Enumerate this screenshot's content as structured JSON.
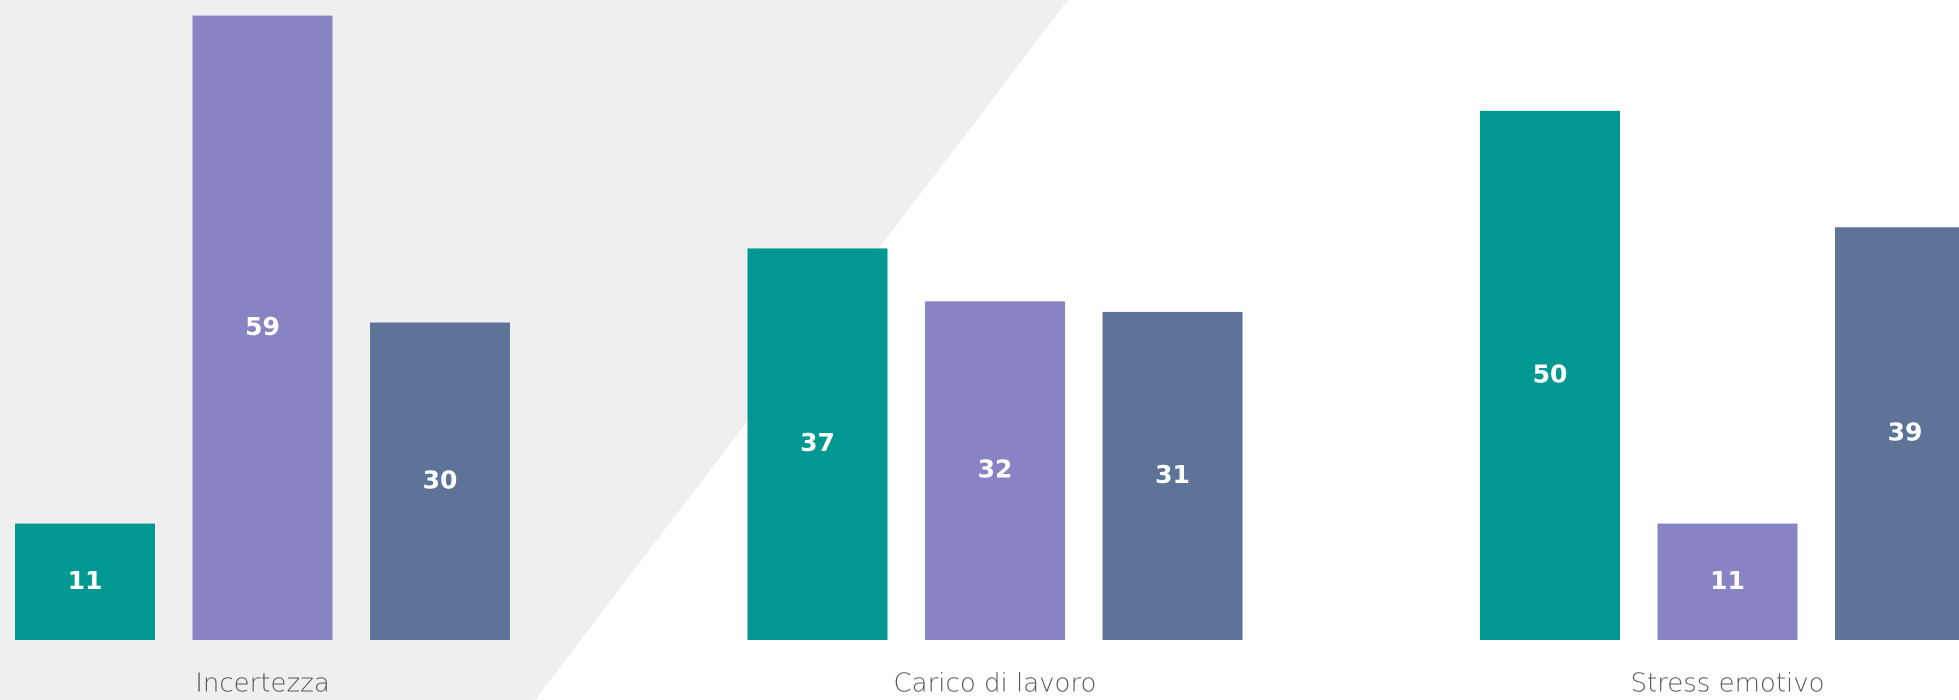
{
  "chart_data": {
    "type": "bar",
    "categories": [
      "Incertezza",
      "Carico di lavoro",
      "Stress emotivo"
    ],
    "series": [
      {
        "color": "#009890",
        "values": [
          11,
          37,
          50
        ]
      },
      {
        "color": "#8884c4",
        "values": [
          59,
          32,
          11
        ]
      },
      {
        "color": "#5e7398",
        "values": [
          30,
          31,
          39
        ]
      }
    ],
    "ylim": [
      0,
      60
    ]
  }
}
